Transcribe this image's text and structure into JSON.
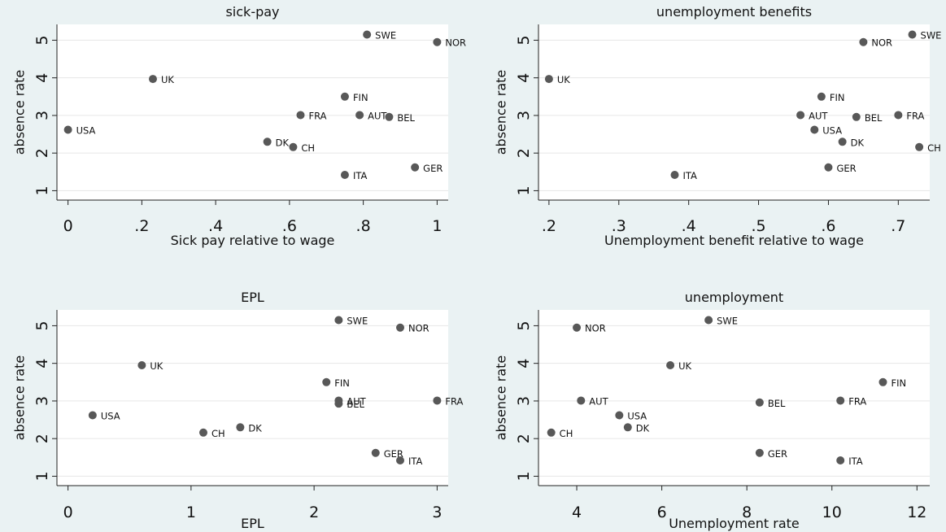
{
  "chart_data": [
    {
      "type": "scatter",
      "title": "sick-pay",
      "xlabel": "Sick pay relative to wage",
      "ylabel": "absence rate",
      "xlim": [
        -0.03,
        1.03
      ],
      "ylim": [
        0.75,
        5.42
      ],
      "xticks": [
        0,
        0.2,
        0.4,
        0.6,
        0.8,
        1
      ],
      "xtick_labels": [
        "0",
        ".2",
        ".4",
        ".6",
        ".8",
        "1"
      ],
      "yticks": [
        1,
        2,
        3,
        4,
        5
      ],
      "ytick_labels": [
        "1",
        "2",
        "3",
        "4",
        "5"
      ],
      "grid": true,
      "points": [
        {
          "label": "SWE",
          "x": 0.81,
          "y": 5.15
        },
        {
          "label": "NOR",
          "x": 1.0,
          "y": 4.95
        },
        {
          "label": "UK",
          "x": 0.23,
          "y": 3.97
        },
        {
          "label": "FIN",
          "x": 0.75,
          "y": 3.5
        },
        {
          "label": "FRA",
          "x": 0.63,
          "y": 3.01
        },
        {
          "label": "AUT",
          "x": 0.79,
          "y": 3.01
        },
        {
          "label": "BEL",
          "x": 0.87,
          "y": 2.96
        },
        {
          "label": "USA",
          "x": 0.0,
          "y": 2.62
        },
        {
          "label": "DK",
          "x": 0.54,
          "y": 2.3
        },
        {
          "label": "CH",
          "x": 0.61,
          "y": 2.16
        },
        {
          "label": "GER",
          "x": 0.94,
          "y": 1.62
        },
        {
          "label": "ITA",
          "x": 0.75,
          "y": 1.42
        }
      ]
    },
    {
      "type": "scatter",
      "title": "unemployment benefits",
      "xlabel": "Unemployment benefit relative to wage",
      "ylabel": "absence rate",
      "xlim": [
        0.185,
        0.745
      ],
      "ylim": [
        0.75,
        5.42
      ],
      "xticks": [
        0.2,
        0.3,
        0.4,
        0.5,
        0.6,
        0.7
      ],
      "xtick_labels": [
        ".2",
        ".3",
        ".4",
        ".5",
        ".6",
        ".7"
      ],
      "yticks": [
        1,
        2,
        3,
        4,
        5
      ],
      "ytick_labels": [
        "1",
        "2",
        "3",
        "4",
        "5"
      ],
      "grid": true,
      "points": [
        {
          "label": "SWE",
          "x": 0.72,
          "y": 5.15
        },
        {
          "label": "NOR",
          "x": 0.65,
          "y": 4.95
        },
        {
          "label": "UK",
          "x": 0.2,
          "y": 3.97
        },
        {
          "label": "FIN",
          "x": 0.59,
          "y": 3.5
        },
        {
          "label": "AUT",
          "x": 0.56,
          "y": 3.01
        },
        {
          "label": "BEL",
          "x": 0.64,
          "y": 2.96
        },
        {
          "label": "FRA",
          "x": 0.7,
          "y": 3.01
        },
        {
          "label": "USA",
          "x": 0.58,
          "y": 2.62
        },
        {
          "label": "DK",
          "x": 0.62,
          "y": 2.3
        },
        {
          "label": "CH",
          "x": 0.73,
          "y": 2.16
        },
        {
          "label": "GER",
          "x": 0.6,
          "y": 1.62
        },
        {
          "label": "ITA",
          "x": 0.38,
          "y": 1.42
        }
      ]
    },
    {
      "type": "scatter",
      "title": "EPL",
      "xlabel": "EPL",
      "ylabel": "absence rate",
      "xlim": [
        -0.09,
        3.09
      ],
      "ylim": [
        0.75,
        5.42
      ],
      "xticks": [
        0,
        1,
        2,
        3
      ],
      "xtick_labels": [
        "0",
        "1",
        "2",
        "3"
      ],
      "yticks": [
        1,
        2,
        3,
        4,
        5
      ],
      "ytick_labels": [
        "1",
        "2",
        "3",
        "4",
        "5"
      ],
      "grid": true,
      "points": [
        {
          "label": "SWE",
          "x": 2.2,
          "y": 5.15
        },
        {
          "label": "NOR",
          "x": 2.7,
          "y": 4.95
        },
        {
          "label": "UK",
          "x": 0.6,
          "y": 3.95
        },
        {
          "label": "FIN",
          "x": 2.1,
          "y": 3.5
        },
        {
          "label": "AUT",
          "x": 2.2,
          "y": 3.01
        },
        {
          "label": "BEL",
          "x": 2.2,
          "y": 2.93
        },
        {
          "label": "FRA",
          "x": 3.0,
          "y": 3.01
        },
        {
          "label": "USA",
          "x": 0.2,
          "y": 2.62
        },
        {
          "label": "DK",
          "x": 1.4,
          "y": 2.3
        },
        {
          "label": "CH",
          "x": 1.1,
          "y": 2.16
        },
        {
          "label": "GER",
          "x": 2.5,
          "y": 1.62
        },
        {
          "label": "ITA",
          "x": 2.7,
          "y": 1.42
        }
      ]
    },
    {
      "type": "scatter",
      "title": "unemployment",
      "xlabel": "Unemployment rate",
      "ylabel": "absence rate",
      "xlim": [
        3.1,
        12.3
      ],
      "ylim": [
        0.75,
        5.42
      ],
      "xticks": [
        4,
        6,
        8,
        10,
        12
      ],
      "xtick_labels": [
        "4",
        "6",
        "8",
        "10",
        "12"
      ],
      "yticks": [
        1,
        2,
        3,
        4,
        5
      ],
      "ytick_labels": [
        "1",
        "2",
        "3",
        "4",
        "5"
      ],
      "grid": true,
      "points": [
        {
          "label": "SWE",
          "x": 7.1,
          "y": 5.15
        },
        {
          "label": "NOR",
          "x": 4.0,
          "y": 4.95
        },
        {
          "label": "UK",
          "x": 6.2,
          "y": 3.95
        },
        {
          "label": "FIN",
          "x": 11.2,
          "y": 3.5
        },
        {
          "label": "AUT",
          "x": 4.1,
          "y": 3.01
        },
        {
          "label": "BEL",
          "x": 8.3,
          "y": 2.96
        },
        {
          "label": "FRA",
          "x": 10.2,
          "y": 3.01
        },
        {
          "label": "USA",
          "x": 5.0,
          "y": 2.62
        },
        {
          "label": "DK",
          "x": 5.2,
          "y": 2.3
        },
        {
          "label": "CH",
          "x": 3.4,
          "y": 2.16
        },
        {
          "label": "GER",
          "x": 8.3,
          "y": 1.62
        },
        {
          "label": "ITA",
          "x": 10.2,
          "y": 1.42
        }
      ]
    }
  ]
}
